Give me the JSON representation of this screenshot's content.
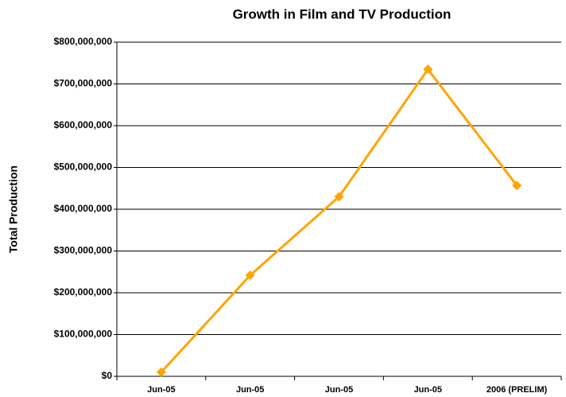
{
  "chart_data": {
    "type": "line",
    "title": "Growth in Film and TV Production",
    "y_label": "Total Production",
    "categories": [
      "Jun-05",
      "Jun-05",
      "Jun-05",
      "Jun-05",
      "2006 (PRELIM)"
    ],
    "series": [
      {
        "name": "Total Production",
        "color": "#FFA500",
        "values": [
          10000000,
          242000000,
          430000000,
          735000000,
          457000000
        ]
      }
    ],
    "ylim": [
      0,
      800000000
    ],
    "yticks": [
      {
        "value": 0,
        "label": "$0"
      },
      {
        "value": 100000000,
        "label": "$100,000,000"
      },
      {
        "value": 200000000,
        "label": "$200,000,000"
      },
      {
        "value": 300000000,
        "label": "$300,000,000"
      },
      {
        "value": 400000000,
        "label": "$400,000,000"
      },
      {
        "value": 500000000,
        "label": "$500,000,000"
      },
      {
        "value": 600000000,
        "label": "$600,000,000"
      },
      {
        "value": 700000000,
        "label": "$700,000,000"
      },
      {
        "value": 800000000,
        "label": "$800,000,000"
      }
    ],
    "grid": true
  }
}
